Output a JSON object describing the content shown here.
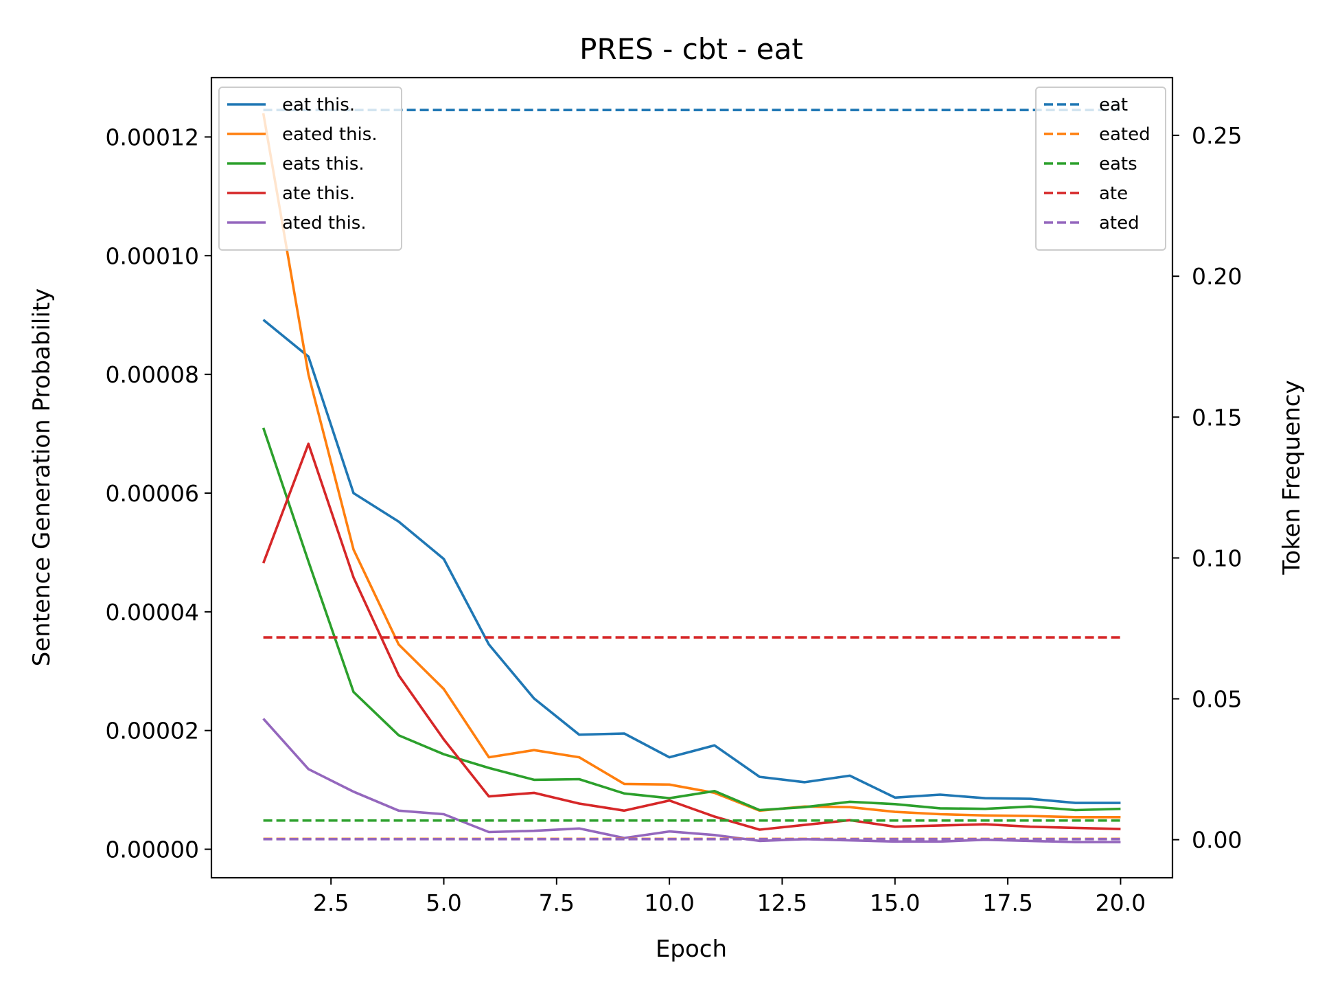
{
  "chart_data": {
    "type": "line",
    "title": "PRES - cbt - eat",
    "xlabel": "Epoch",
    "ylabel": "Sentence Generation Probability",
    "y2label": "Token Frequency",
    "x": [
      1,
      2,
      3,
      4,
      5,
      6,
      7,
      8,
      9,
      10,
      11,
      12,
      13,
      14,
      15,
      16,
      17,
      18,
      19,
      20
    ],
    "xlim": [
      -0.15,
      21.15
    ],
    "ylim": [
      -4.8e-06,
      0.00013
    ],
    "y2lim": [
      -0.0135,
      0.2705
    ],
    "xticks": [
      2.5,
      5.0,
      7.5,
      10.0,
      12.5,
      15.0,
      17.5,
      20.0
    ],
    "xtick_labels": [
      "2.5",
      "5.0",
      "7.5",
      "10.0",
      "12.5",
      "15.0",
      "17.5",
      "20.0"
    ],
    "yticks": [
      0,
      2e-05,
      4e-05,
      6e-05,
      8e-05,
      0.0001,
      0.00012
    ],
    "ytick_labels": [
      "0.00000",
      "0.00002",
      "0.00004",
      "0.00006",
      "0.00008",
      "0.00010",
      "0.00012"
    ],
    "y2ticks": [
      0,
      0.05,
      0.1,
      0.15,
      0.2,
      0.25
    ],
    "y2tick_labels": [
      "0.00",
      "0.05",
      "0.10",
      "0.15",
      "0.20",
      "0.25"
    ],
    "grid": false,
    "legend_left_position": "upper-left",
    "legend_right_position": "upper-right",
    "series": [
      {
        "name": "eat this.",
        "color": "#1f77b4",
        "axis": "left",
        "style": "solid",
        "values": [
          8.92e-05,
          8.3e-05,
          6e-05,
          5.52e-05,
          4.89e-05,
          3.45e-05,
          2.54e-05,
          1.93e-05,
          1.95e-05,
          1.55e-05,
          1.75e-05,
          1.22e-05,
          1.13e-05,
          1.24e-05,
          8.7e-06,
          9.2e-06,
          8.6e-06,
          8.5e-06,
          7.8e-06,
          7.8e-06
        ]
      },
      {
        "name": "eated this.",
        "color": "#ff7f0e",
        "axis": "left",
        "style": "solid",
        "values": [
          0.000124,
          8e-05,
          5.05e-05,
          3.45e-05,
          2.7e-05,
          1.55e-05,
          1.67e-05,
          1.55e-05,
          1.1e-05,
          1.09e-05,
          9.5e-06,
          6.5e-06,
          7.2e-06,
          7.1e-06,
          6.3e-06,
          5.9e-06,
          5.7e-06,
          5.6e-06,
          5.4e-06,
          5.4e-06
        ]
      },
      {
        "name": "eats this.",
        "color": "#2ca02c",
        "axis": "left",
        "style": "solid",
        "values": [
          7.1e-05,
          4.85e-05,
          2.65e-05,
          1.92e-05,
          1.6e-05,
          1.37e-05,
          1.17e-05,
          1.18e-05,
          9.4e-06,
          8.6e-06,
          9.8e-06,
          6.6e-06,
          7.1e-06,
          8e-06,
          7.6e-06,
          6.9e-06,
          6.8e-06,
          7.2e-06,
          6.6e-06,
          6.8e-06
        ]
      },
      {
        "name": "ate this.",
        "color": "#d62728",
        "axis": "left",
        "style": "solid",
        "values": [
          4.82e-05,
          6.83e-05,
          4.58e-05,
          2.93e-05,
          1.85e-05,
          8.9e-06,
          9.5e-06,
          7.7e-06,
          6.5e-06,
          8.2e-06,
          5.5e-06,
          3.3e-06,
          4.1e-06,
          4.9e-06,
          3.8e-06,
          4e-06,
          4.2e-06,
          3.8e-06,
          3.6e-06,
          3.4e-06
        ]
      },
      {
        "name": "ated this.",
        "color": "#9467bd",
        "axis": "left",
        "style": "solid",
        "values": [
          2.2e-05,
          1.35e-05,
          9.7e-06,
          6.5e-06,
          5.9e-06,
          2.9e-06,
          3.1e-06,
          3.5e-06,
          1.9e-06,
          3e-06,
          2.4e-06,
          1.4e-06,
          1.7e-06,
          1.5e-06,
          1.3e-06,
          1.3e-06,
          1.6e-06,
          1.4e-06,
          1.2e-06,
          1.2e-06
        ]
      },
      {
        "name": "eat",
        "color": "#1f77b4",
        "axis": "right",
        "style": "dashed",
        "values": [
          0.259,
          0.259,
          0.259,
          0.259,
          0.259,
          0.259,
          0.259,
          0.259,
          0.259,
          0.259,
          0.259,
          0.259,
          0.259,
          0.259,
          0.259,
          0.259,
          0.259,
          0.259,
          0.259,
          0.259
        ]
      },
      {
        "name": "eated",
        "color": "#ff7f0e",
        "axis": "right",
        "style": "dashed",
        "values": [
          0.0003,
          0.0003,
          0.0003,
          0.0003,
          0.0003,
          0.0003,
          0.0003,
          0.0003,
          0.0003,
          0.0003,
          0.0003,
          0.0003,
          0.0003,
          0.0003,
          0.0003,
          0.0003,
          0.0003,
          0.0003,
          0.0003,
          0.0003
        ]
      },
      {
        "name": "eats",
        "color": "#2ca02c",
        "axis": "right",
        "style": "dashed",
        "values": [
          0.0068,
          0.0068,
          0.0068,
          0.0068,
          0.0068,
          0.0068,
          0.0068,
          0.0068,
          0.0068,
          0.0068,
          0.0068,
          0.0068,
          0.0068,
          0.0068,
          0.0068,
          0.0068,
          0.0068,
          0.0068,
          0.0068,
          0.0068
        ]
      },
      {
        "name": "ate",
        "color": "#d62728",
        "axis": "right",
        "style": "dashed",
        "values": [
          0.0718,
          0.0718,
          0.0718,
          0.0718,
          0.0718,
          0.0718,
          0.0718,
          0.0718,
          0.0718,
          0.0718,
          0.0718,
          0.0718,
          0.0718,
          0.0718,
          0.0718,
          0.0718,
          0.0718,
          0.0718,
          0.0718,
          0.0718
        ]
      },
      {
        "name": "ated",
        "color": "#9467bd",
        "axis": "right",
        "style": "dashed",
        "values": [
          0.0002,
          0.0002,
          0.0002,
          0.0002,
          0.0002,
          0.0002,
          0.0002,
          0.0002,
          0.0002,
          0.0002,
          0.0002,
          0.0002,
          0.0002,
          0.0002,
          0.0002,
          0.0002,
          0.0002,
          0.0002,
          0.0002,
          0.0002
        ]
      }
    ]
  }
}
